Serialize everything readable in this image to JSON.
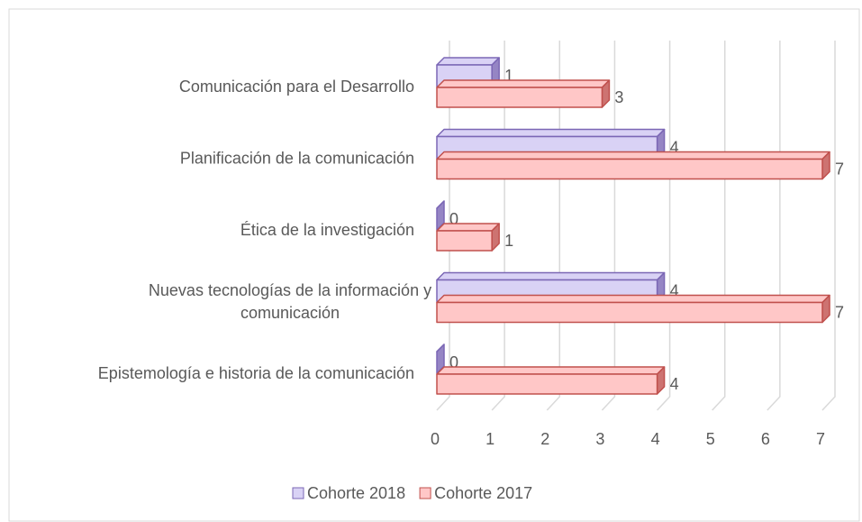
{
  "chart_data": {
    "type": "bar",
    "orientation": "horizontal",
    "categories": [
      "Comunicación para el Desarrollo",
      "Planificación de la comunicación",
      "Ética de la investigación",
      "Nuevas tecnologías de la información y comunicación",
      "Epistemología e historia de la comunicación"
    ],
    "series": [
      {
        "name": "Cohorte 2018",
        "color": "#d9d2f5",
        "edge": "#7b67b5",
        "values": [
          1,
          4,
          0,
          4,
          0
        ]
      },
      {
        "name": "Cohorte 2017",
        "color": "#ffc7c7",
        "edge": "#c0504d",
        "values": [
          3,
          7,
          1,
          7,
          4
        ]
      }
    ],
    "xlim": [
      0,
      7
    ],
    "xticks": [
      0,
      1,
      2,
      3,
      4,
      5,
      6,
      7
    ],
    "grid": true,
    "legend": "bottom"
  }
}
